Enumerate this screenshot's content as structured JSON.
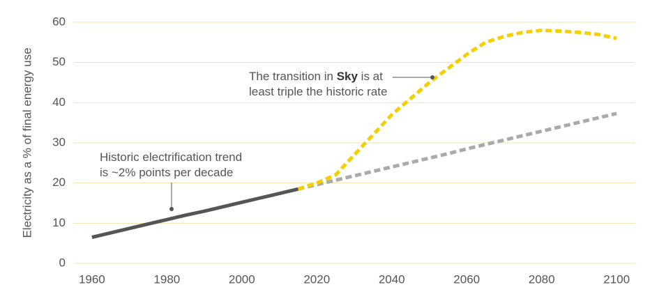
{
  "chart_data": {
    "type": "line",
    "ylabel": "Electricity as a % of final energy use",
    "x": [
      1960,
      1965,
      1970,
      1975,
      1980,
      1985,
      1990,
      1995,
      2000,
      2005,
      2010,
      2015,
      2020,
      2025,
      2030,
      2035,
      2040,
      2045,
      2050,
      2055,
      2060,
      2065,
      2070,
      2075,
      2080,
      2085,
      2090,
      2095,
      2100
    ],
    "series": [
      {
        "color": "#aaaaaa",
        "dashed": true,
        "values": [
          null,
          null,
          null,
          null,
          null,
          null,
          null,
          null,
          null,
          null,
          null,
          18.5,
          19.6,
          20.7,
          21.8,
          22.9,
          24.0,
          25.1,
          26.2,
          27.3,
          28.5,
          29.6,
          30.7,
          31.8,
          32.9,
          34.0,
          35.1,
          36.2,
          37.3
        ]
      },
      {
        "color": "#f5d000",
        "dashed": true,
        "values": [
          null,
          null,
          null,
          null,
          null,
          null,
          null,
          null,
          null,
          null,
          null,
          18.5,
          20,
          22,
          27,
          32,
          37,
          41,
          45,
          48.5,
          52,
          55,
          56.5,
          57.5,
          58,
          57.8,
          57.5,
          57,
          56
        ]
      },
      {
        "color": "#555555",
        "dashed": false,
        "values": [
          6.5,
          7.6,
          8.7,
          9.8,
          10.9,
          12.0,
          13.0,
          14.1,
          15.2,
          16.3,
          17.4,
          18.5,
          null,
          null,
          null,
          null,
          null,
          null,
          null,
          null,
          null,
          null,
          null,
          null,
          null,
          null,
          null,
          null,
          null
        ]
      }
    ],
    "xlim": [
      1955,
      2105
    ],
    "xticks": [
      1960,
      1980,
      2000,
      2020,
      2040,
      2060,
      2080,
      2100
    ],
    "ylim": [
      0,
      60
    ],
    "yticks": [
      0,
      10,
      20,
      30,
      40,
      50,
      60
    ],
    "grid": true,
    "annotations": [
      {
        "lines": [
          [
            "Historic electrification trend"
          ],
          [
            "is ~2% points per decade"
          ]
        ]
      },
      {
        "lines": [
          [
            "The transition in ",
            "Sky",
            " is at"
          ],
          [
            "least triple the historic rate"
          ]
        ]
      }
    ]
  }
}
